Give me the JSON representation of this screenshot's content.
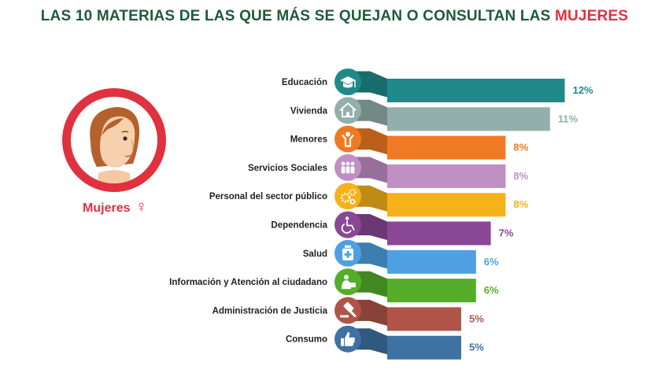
{
  "title": {
    "main": "LAS 10 MATERIAS DE LAS QUE MÁS SE QUEJAN O CONSULTAN LAS ",
    "accent": "MUJERES"
  },
  "profile": {
    "label": "Mujeres",
    "symbol": "♀",
    "circle_color": "#e0313f"
  },
  "chart_data": {
    "type": "bar",
    "orientation": "horizontal",
    "title": "LAS 10 MATERIAS DE LAS QUE MÁS SE QUEJAN O CONSULTAN LAS MUJERES",
    "xlabel": "",
    "ylabel": "",
    "unit": "%",
    "xlim": [
      0,
      12
    ],
    "grid": false,
    "categories": [
      "Educación",
      "Vivienda",
      "Menores",
      "Servicios Sociales",
      "Personal del sector público",
      "Dependencia",
      "Salud",
      "Información y Atención al ciudadano",
      "Administración de Justicia",
      "Consumo"
    ],
    "values": [
      12,
      11,
      8,
      8,
      8,
      7,
      6,
      6,
      5,
      5
    ],
    "value_labels": [
      "12%",
      "11%",
      "8%",
      "8%",
      "8%",
      "7%",
      "6%",
      "6%",
      "5%",
      "5%"
    ],
    "colors": [
      "#1f8a88",
      "#93afab",
      "#f07a23",
      "#c08fc4",
      "#f6b21b",
      "#8a4796",
      "#4fa0e2",
      "#55ad2a",
      "#b05449",
      "#3f71a3"
    ],
    "icons": [
      "graduation-cap-icon",
      "house-icon",
      "child-icon",
      "group-icon",
      "gears-icon",
      "wheelchair-icon",
      "medicine-icon",
      "person-info-icon",
      "gavel-icon",
      "thumbs-up-icon"
    ]
  }
}
